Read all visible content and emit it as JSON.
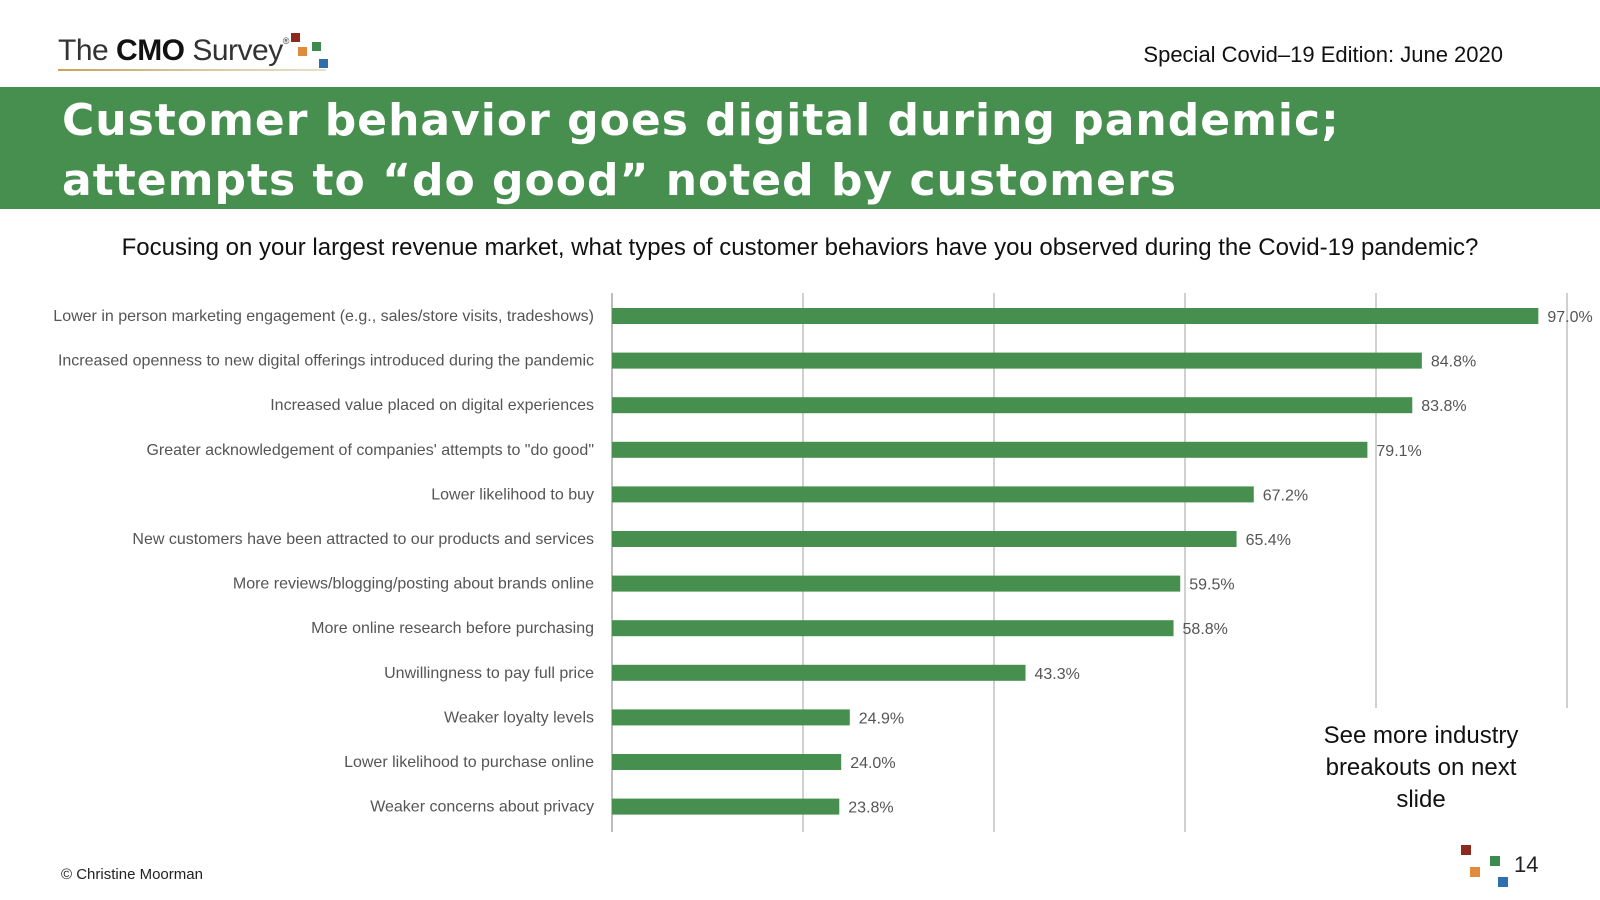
{
  "header": {
    "logo_the": "The ",
    "logo_cmo": "CMO",
    "logo_survey": " Survey",
    "logo_reg": "®",
    "edition": "Special Covid–19 Edition: June 2020"
  },
  "title": "Customer behavior goes digital during pandemic; attempts to “do good” noted by customers",
  "question": "Focusing on your largest revenue market, what types of customer behaviors have you observed during the Covid-19 pandemic?",
  "note": "See more industry breakouts on next slide",
  "footer": {
    "copyright": "© Christine Moorman",
    "page_number": "14"
  },
  "colors": {
    "banner": "#468f4e",
    "bar": "#468f4e",
    "grid": "#d0d0d0",
    "square_red": "#8b2a1e",
    "square_orange": "#e08a3c",
    "square_green": "#3c8a4e",
    "square_blue": "#2f6fad"
  },
  "chart_data": {
    "type": "bar",
    "orientation": "horizontal",
    "categories": [
      "Lower in person marketing engagement (e.g., sales/store visits, tradeshows)",
      "Increased openness to new digital offerings introduced during the pandemic",
      "Increased value placed on digital experiences",
      "Greater acknowledgement of companies' attempts to \"do good\"",
      "Lower likelihood to buy",
      "New customers have been attracted to our products and services",
      "More reviews/blogging/posting about brands online",
      "More online research before purchasing",
      "Unwillingness to pay full price",
      "Weaker loyalty levels",
      "Lower likelihood to purchase online",
      "Weaker concerns about privacy"
    ],
    "values": [
      97.0,
      84.8,
      83.8,
      79.1,
      67.2,
      65.4,
      59.5,
      58.8,
      43.3,
      24.9,
      24.0,
      23.8
    ],
    "value_labels": [
      "97.0%",
      "84.8%",
      "83.8%",
      "79.1%",
      "67.2%",
      "65.4%",
      "59.5%",
      "58.8%",
      "43.3%",
      "24.9%",
      "24.0%",
      "23.8%"
    ],
    "title": "",
    "xlabel": "",
    "ylabel": "",
    "xlim": [
      0,
      100
    ],
    "gridlines": [
      0,
      20,
      40,
      60,
      80,
      100
    ],
    "grid": true,
    "legend": "none"
  }
}
